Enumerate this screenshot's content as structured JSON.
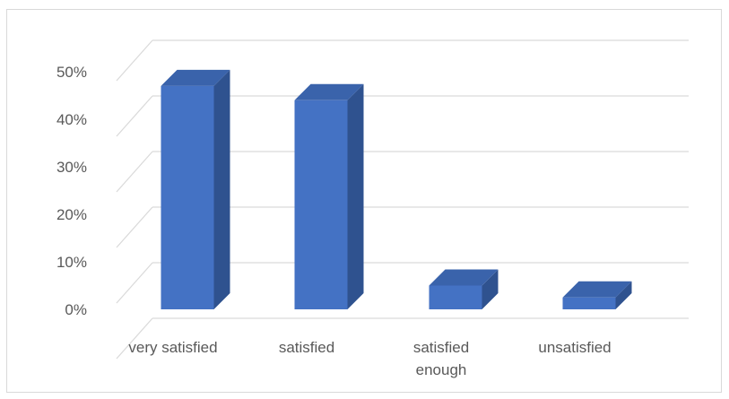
{
  "chart_data": {
    "type": "bar",
    "style": "3d-column",
    "title": "",
    "xlabel": "",
    "ylabel": "",
    "categories": [
      [
        "very satisfied"
      ],
      [
        "satisfied"
      ],
      [
        "satisfied",
        "enough"
      ],
      [
        "unsatisfied"
      ]
    ],
    "values": [
      47,
      44,
      5,
      2.5
    ],
    "ylim": [
      0,
      50
    ],
    "y_ticks": [
      "0%",
      "10%",
      "20%",
      "30%",
      "40%",
      "50%"
    ],
    "grid": true,
    "legend": "none",
    "colors": {
      "front": "#4472c4",
      "side": "#2f528f",
      "top": "#3a63ab",
      "grid": "#d9d9d9",
      "text": "#595959"
    }
  }
}
